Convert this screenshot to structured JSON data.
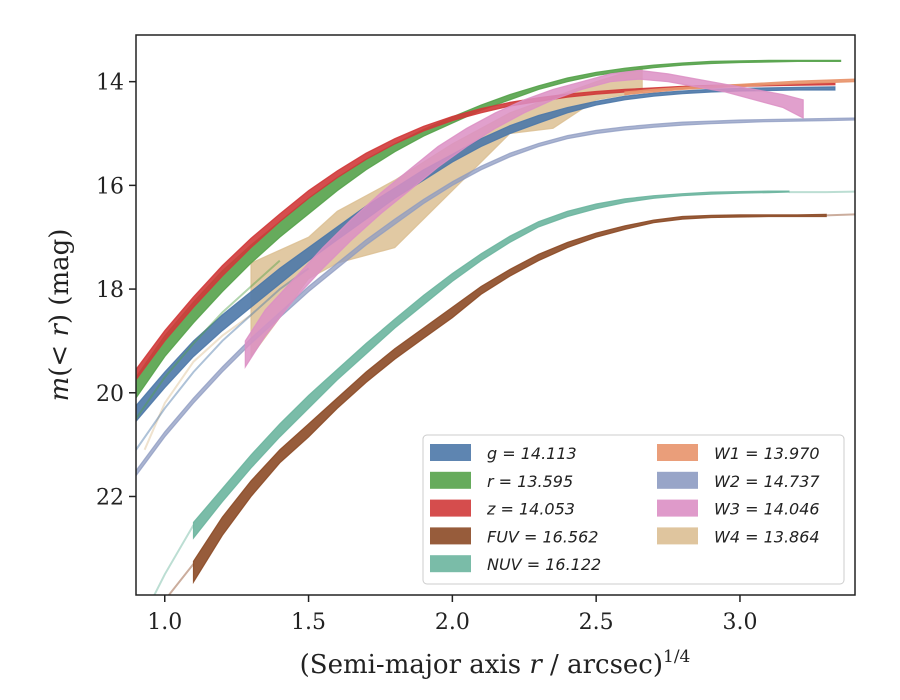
{
  "chart_data": {
    "type": "line",
    "title": "",
    "xlabel": "(Semi-major axis r / arcsec)^1/4",
    "xlabel_parts": {
      "prefix": "(Semi-major axis ",
      "var": "r",
      "mid": " / arcsec)",
      "sup": "1/4"
    },
    "ylabel": "m(< r) (mag)",
    "ylabel_parts": {
      "m": "m",
      "open": "(",
      "lt": "< ",
      "r": "r",
      "close": ")",
      "unit": " (mag)"
    },
    "xlim": [
      0.9,
      3.4
    ],
    "ylim": [
      23.9,
      13.1
    ],
    "y_inverted": true,
    "xticks": [
      "1.0",
      "1.5",
      "2.0",
      "2.5",
      "3.0"
    ],
    "xtick_values": [
      1.0,
      1.5,
      2.0,
      2.5,
      3.0
    ],
    "yticks": [
      "14",
      "16",
      "18",
      "20",
      "22"
    ],
    "ytick_values": [
      14,
      16,
      18,
      20,
      22
    ],
    "grid": false,
    "legend_position": "lower-right",
    "legend": [
      {
        "label": "g = 14.113",
        "color": "#4c78a8"
      },
      {
        "label": "r = 13.595",
        "color": "#55a24a"
      },
      {
        "label": "z = 14.053",
        "color": "#d03a3a"
      },
      {
        "label": "FUV = 16.562",
        "color": "#8c4a26"
      },
      {
        "label": "NUV = 16.122",
        "color": "#6bb59e"
      },
      {
        "label": "W1 = 13.970",
        "color": "#e8946c"
      },
      {
        "label": "W2 = 14.737",
        "color": "#8d9bc2"
      },
      {
        "label": "W3 = 14.046",
        "color": "#dc8fc4"
      },
      {
        "label": "W4 = 13.864",
        "color": "#dcbf93"
      }
    ],
    "series": [
      {
        "name": "W4 = 13.864",
        "color": "#dcbf93",
        "alpha": 0.85,
        "x": [
          1.3,
          1.5,
          1.6,
          1.8,
          2.0,
          2.2,
          2.35,
          2.5,
          2.66
        ],
        "y_low": [
          19.3,
          17.8,
          17.5,
          17.2,
          16.1,
          15.0,
          14.9,
          14.35,
          14.2
        ],
        "y_high": [
          17.5,
          17.0,
          16.5,
          15.9,
          15.2,
          14.6,
          14.3,
          14.0,
          13.72
        ],
        "ext_x": [
          0.93,
          1.0,
          1.1,
          1.2,
          1.3
        ],
        "ext_y": [
          21.1,
          20.2,
          19.4,
          18.9,
          18.5
        ]
      },
      {
        "name": "g = 14.113",
        "color": "#4c78a8",
        "alpha": 0.9,
        "x": [
          0.9,
          1.0,
          1.1,
          1.2,
          1.3,
          1.4,
          1.5,
          1.6,
          1.7,
          1.8,
          1.9,
          2.0,
          2.1,
          2.2,
          2.3,
          2.4,
          2.5,
          2.6,
          2.7,
          2.8,
          2.9,
          3.0,
          3.1,
          3.2,
          3.33
        ],
        "y_low": [
          20.55,
          19.9,
          19.3,
          18.8,
          18.35,
          17.9,
          17.45,
          17.05,
          16.65,
          16.25,
          15.9,
          15.55,
          15.25,
          15.0,
          14.8,
          14.6,
          14.45,
          14.35,
          14.28,
          14.23,
          14.2,
          14.18,
          14.17,
          14.16,
          14.16
        ],
        "y_high": [
          20.25,
          19.6,
          19.0,
          18.5,
          18.05,
          17.6,
          17.2,
          16.8,
          16.4,
          16.05,
          15.7,
          15.4,
          15.1,
          14.85,
          14.65,
          14.5,
          14.38,
          14.28,
          14.22,
          14.18,
          14.15,
          14.13,
          14.12,
          14.11,
          14.1
        ],
        "trail_x": [
          0.9,
          1.0,
          1.1,
          1.2,
          1.3,
          1.4,
          1.5
        ],
        "trail_y": [
          21.1,
          20.3,
          19.6,
          19.0,
          18.5,
          18.0,
          17.6
        ]
      },
      {
        "name": "r = 13.595",
        "color": "#55a24a",
        "alpha": 0.9,
        "x": [
          0.9,
          1.0,
          1.1,
          1.2,
          1.3,
          1.4,
          1.5,
          1.6,
          1.7,
          1.8,
          1.9,
          2.0,
          2.1,
          2.2,
          2.3,
          2.4,
          2.5,
          2.6,
          2.7,
          2.8,
          2.9,
          3.0,
          3.1,
          3.2,
          3.35
        ],
        "y_low": [
          20.1,
          19.3,
          18.65,
          18.05,
          17.5,
          17.0,
          16.55,
          16.1,
          15.7,
          15.35,
          15.05,
          14.8,
          14.55,
          14.35,
          14.15,
          14.0,
          13.88,
          13.8,
          13.73,
          13.68,
          13.65,
          13.63,
          13.62,
          13.61,
          13.61
        ],
        "y_high": [
          19.7,
          18.9,
          18.25,
          17.65,
          17.15,
          16.7,
          16.25,
          15.85,
          15.5,
          15.2,
          14.92,
          14.68,
          14.45,
          14.25,
          14.08,
          13.93,
          13.82,
          13.74,
          13.68,
          13.64,
          13.61,
          13.6,
          13.59,
          13.59,
          13.59
        ],
        "trail_x": [
          0.9,
          1.0,
          1.1,
          1.2,
          1.3,
          1.4
        ],
        "trail_y": [
          20.5,
          19.7,
          19.05,
          18.45,
          17.95,
          17.45
        ]
      },
      {
        "name": "z = 14.053",
        "color": "#d03a3a",
        "alpha": 0.9,
        "x": [
          0.9,
          1.0,
          1.1,
          1.2,
          1.3,
          1.4,
          1.5,
          1.6,
          1.7,
          1.8,
          1.9,
          2.0,
          2.1,
          2.2,
          2.3,
          2.4,
          2.5,
          2.6,
          2.7,
          2.8,
          2.9,
          3.0,
          3.1,
          3.2,
          3.33
        ],
        "y_low": [
          19.75,
          19.0,
          18.35,
          17.75,
          17.2,
          16.7,
          16.25,
          15.85,
          15.5,
          15.2,
          14.95,
          14.75,
          14.6,
          14.47,
          14.38,
          14.3,
          14.24,
          14.2,
          14.16,
          14.13,
          14.11,
          14.09,
          14.08,
          14.07,
          14.06
        ],
        "y_high": [
          19.55,
          18.8,
          18.15,
          17.55,
          17.02,
          16.55,
          16.1,
          15.72,
          15.38,
          15.1,
          14.86,
          14.67,
          14.52,
          14.4,
          14.31,
          14.24,
          14.19,
          14.15,
          14.12,
          14.09,
          14.07,
          14.06,
          14.05,
          14.04,
          14.03
        ]
      },
      {
        "name": "W1 = 13.970",
        "color": "#e8946c",
        "alpha": 0.9,
        "x": [
          2.6,
          2.7,
          2.8,
          2.9,
          3.0,
          3.1,
          3.2,
          3.3,
          3.4
        ],
        "y_low": [
          14.25,
          14.2,
          14.15,
          14.12,
          14.09,
          14.06,
          14.04,
          14.02,
          14.0
        ],
        "y_high": [
          14.2,
          14.15,
          14.11,
          14.08,
          14.05,
          14.02,
          13.99,
          13.97,
          13.95
        ]
      },
      {
        "name": "W2 = 14.737",
        "color": "#8d9bc2",
        "alpha": 0.75,
        "x": [
          0.9,
          1.0,
          1.1,
          1.2,
          1.3,
          1.4,
          1.5,
          1.6,
          1.7,
          1.8,
          1.9,
          2.0,
          2.1,
          2.2,
          2.3,
          2.4,
          2.5,
          2.6,
          2.7,
          2.8,
          2.9,
          3.0,
          3.1,
          3.2,
          3.3,
          3.4
        ],
        "y_low": [
          21.6,
          20.85,
          20.2,
          19.6,
          19.05,
          18.55,
          18.05,
          17.6,
          17.15,
          16.75,
          16.35,
          16.0,
          15.7,
          15.45,
          15.25,
          15.1,
          15.0,
          14.93,
          14.88,
          14.84,
          14.81,
          14.79,
          14.77,
          14.76,
          14.75,
          14.74
        ],
        "y_high": [
          21.5,
          20.75,
          20.1,
          19.5,
          18.95,
          18.45,
          17.95,
          17.5,
          17.05,
          16.65,
          16.27,
          15.93,
          15.63,
          15.38,
          15.19,
          15.04,
          14.94,
          14.87,
          14.82,
          14.78,
          14.76,
          14.74,
          14.73,
          14.72,
          14.71,
          14.7
        ]
      },
      {
        "name": "W3 = 14.046",
        "color": "#dc8fc4",
        "alpha": 0.85,
        "x": [
          1.28,
          1.35,
          1.45,
          1.55,
          1.65,
          1.75,
          1.85,
          1.95,
          2.05,
          2.15,
          2.25,
          2.35,
          2.45,
          2.55,
          2.65,
          2.75,
          2.85,
          2.95,
          3.05,
          3.15,
          3.22
        ],
        "y_low": [
          19.5,
          18.9,
          18.2,
          17.6,
          17.05,
          16.55,
          16.1,
          15.65,
          15.25,
          14.9,
          14.6,
          14.35,
          14.15,
          14.0,
          13.95,
          14.0,
          14.1,
          14.2,
          14.35,
          14.5,
          14.7
        ],
        "y_high": [
          19.0,
          18.4,
          17.8,
          17.2,
          16.65,
          16.15,
          15.7,
          15.25,
          14.9,
          14.6,
          14.35,
          14.15,
          14.0,
          13.85,
          13.78,
          13.85,
          13.95,
          14.05,
          14.15,
          14.25,
          14.35
        ]
      },
      {
        "name": "NUV = 16.122",
        "color": "#6bb59e",
        "alpha": 0.9,
        "x": [
          1.1,
          1.2,
          1.3,
          1.4,
          1.5,
          1.6,
          1.7,
          1.8,
          1.9,
          2.0,
          2.1,
          2.2,
          2.3,
          2.4,
          2.5,
          2.6,
          2.7,
          2.8,
          2.9,
          3.0,
          3.1,
          3.17
        ],
        "y_low": [
          22.8,
          22.1,
          21.45,
          20.85,
          20.3,
          19.75,
          19.25,
          18.75,
          18.3,
          17.85,
          17.45,
          17.1,
          16.8,
          16.6,
          16.45,
          16.33,
          16.25,
          16.2,
          16.17,
          16.15,
          16.14,
          16.13
        ],
        "y_high": [
          22.5,
          21.85,
          21.2,
          20.6,
          20.05,
          19.55,
          19.05,
          18.58,
          18.12,
          17.7,
          17.32,
          16.98,
          16.7,
          16.5,
          16.36,
          16.26,
          16.2,
          16.16,
          16.13,
          16.12,
          16.11,
          16.11
        ],
        "trail_x": [
          0.9,
          1.0,
          1.1
        ],
        "trail_y": [
          24.6,
          23.5,
          22.55
        ],
        "ext_x": [
          3.17,
          3.3,
          3.4
        ],
        "ext_y": [
          16.13,
          16.13,
          16.12
        ]
      },
      {
        "name": "FUV = 16.562",
        "color": "#8c4a26",
        "alpha": 0.9,
        "x": [
          1.1,
          1.2,
          1.3,
          1.4,
          1.5,
          1.6,
          1.7,
          1.8,
          1.9,
          2.0,
          2.1,
          2.2,
          2.3,
          2.4,
          2.5,
          2.6,
          2.7,
          2.8,
          2.9,
          3.0,
          3.1,
          3.2,
          3.3
        ],
        "y_low": [
          23.65,
          22.75,
          22.0,
          21.35,
          20.85,
          20.3,
          19.8,
          19.35,
          18.95,
          18.55,
          18.1,
          17.75,
          17.45,
          17.2,
          17.0,
          16.85,
          16.72,
          16.65,
          16.62,
          16.61,
          16.6,
          16.6,
          16.6
        ],
        "y_high": [
          23.25,
          22.4,
          21.7,
          21.1,
          20.6,
          20.1,
          19.6,
          19.15,
          18.75,
          18.35,
          17.95,
          17.62,
          17.33,
          17.1,
          16.92,
          16.78,
          16.67,
          16.6,
          16.58,
          16.57,
          16.57,
          16.57,
          16.56
        ],
        "trail_x": [
          0.95,
          1.0,
          1.1
        ],
        "trail_y": [
          24.6,
          24.0,
          23.3
        ],
        "ext_x": [
          3.3,
          3.4
        ],
        "ext_y": [
          16.58,
          16.56
        ]
      }
    ]
  }
}
